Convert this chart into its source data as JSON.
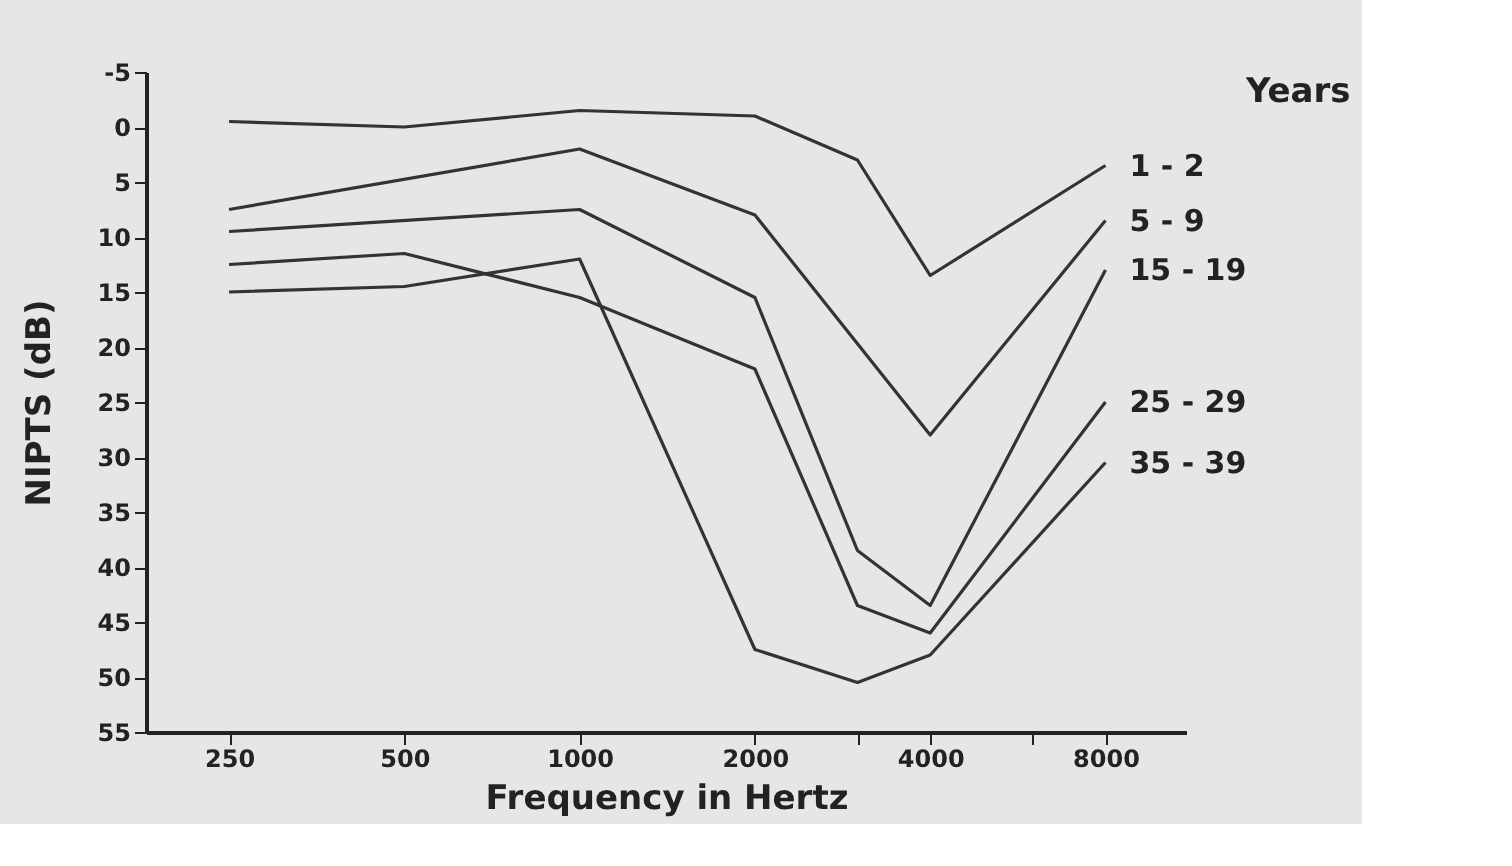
{
  "chart_data": {
    "type": "line",
    "xlabel": "Frequency in Hertz",
    "ylabel": "NIPTS (dB)",
    "legend_title": "Years",
    "log": "x",
    "grid": false,
    "legend": "right",
    "marker": "none",
    "line_style": "solid",
    "x": [
      250,
      500,
      1000,
      2000,
      3000,
      4000,
      8000
    ],
    "xlim": [
      180,
      11000
    ],
    "xticks": [
      250,
      500,
      1000,
      2000,
      {
        "value": 3000,
        "label": null
      },
      4000,
      {
        "value": 6000,
        "label": null
      },
      8000
    ],
    "ylim": [
      55,
      -5
    ],
    "yticks": [
      -5,
      0,
      5,
      10,
      15,
      20,
      25,
      30,
      35,
      40,
      45,
      50,
      55
    ],
    "series": [
      {
        "name": "1 - 2",
        "color": "#333333",
        "values": [
          -0.5,
          0,
          -1.5,
          -1,
          3,
          13.5,
          3.5
        ]
      },
      {
        "name": "5 - 9",
        "color": "#333333",
        "x": [
          250,
          1000,
          2000,
          4000,
          8000
        ],
        "values": [
          7.5,
          2,
          8,
          28,
          8.5
        ]
      },
      {
        "name": "15 - 19",
        "color": "#333333",
        "x": [
          250,
          1000,
          2000,
          3000,
          4000,
          8000
        ],
        "values": [
          9.5,
          7.5,
          15.5,
          38.5,
          43.5,
          13
        ]
      },
      {
        "name": "25 - 29",
        "color": "#333333",
        "values": [
          12.5,
          11.5,
          15.5,
          22,
          43.5,
          46,
          25
        ]
      },
      {
        "name": "35 - 39",
        "color": "#333333",
        "values": [
          15,
          14.5,
          12,
          47.5,
          50.5,
          48,
          30.5
        ]
      }
    ]
  }
}
